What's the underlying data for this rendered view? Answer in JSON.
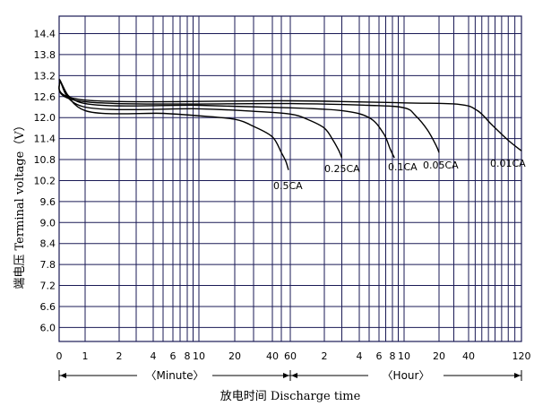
{
  "chart_data": {
    "type": "line",
    "ylabel": "端电压 Terminal voltage（V）",
    "xlabel": "放电时间 Discharge time",
    "ylim": [
      5.6,
      14.9
    ],
    "y_ticks": [
      "14.4",
      "13.8",
      "13.2",
      "12.6",
      "12.0",
      "11.4",
      "10.8",
      "10.2",
      "9.6",
      "9.0",
      "8.4",
      "7.8",
      "7.2",
      "6.6",
      "6.0"
    ],
    "x_ticks": [
      {
        "label": "0",
        "minutes": 0
      },
      {
        "label": "1",
        "minutes": 1
      },
      {
        "label": "2",
        "minutes": 2
      },
      {
        "label": "4",
        "minutes": 4
      },
      {
        "label": "6",
        "minutes": 6
      },
      {
        "label": "8",
        "minutes": 8
      },
      {
        "label": "10",
        "minutes": 10
      },
      {
        "label": "20",
        "minutes": 20
      },
      {
        "label": "40",
        "minutes": 40
      },
      {
        "label": "60",
        "minutes": 60
      },
      {
        "label": "2",
        "minutes": 120
      },
      {
        "label": "4",
        "minutes": 240
      },
      {
        "label": "6",
        "minutes": 360
      },
      {
        "label": "8",
        "minutes": 480
      },
      {
        "label": "10",
        "minutes": 600
      },
      {
        "label": "20",
        "minutes": 1200
      },
      {
        "label": "40",
        "minutes": 2400
      },
      {
        "label": "120",
        "minutes": 7200
      }
    ],
    "x_sections": [
      "〈Minute〉",
      "〈Hour〉"
    ],
    "grid": true,
    "series": [
      {
        "name": "0.5CA",
        "x": [
          0,
          1,
          5,
          10,
          20,
          30,
          40,
          50,
          55,
          58
        ],
        "y": [
          13.1,
          12.2,
          12.12,
          12.05,
          11.95,
          11.75,
          11.45,
          11.0,
          10.75,
          10.5
        ]
      },
      {
        "name": "0.25CA",
        "x": [
          0,
          1,
          10,
          30,
          60,
          90,
          120,
          150,
          170,
          180
        ],
        "y": [
          13.1,
          12.3,
          12.25,
          12.18,
          12.1,
          11.95,
          11.7,
          11.35,
          11.05,
          10.85
        ]
      },
      {
        "name": "0.1CA",
        "x": [
          0,
          1,
          10,
          60,
          180,
          300,
          400,
          460,
          500
        ],
        "y": [
          13.1,
          12.4,
          12.35,
          12.28,
          12.2,
          12.0,
          11.55,
          11.1,
          10.85
        ]
      },
      {
        "name": "0.05CA",
        "x": [
          0,
          1,
          60,
          300,
          600,
          800,
          1000,
          1150,
          1200
        ],
        "y": [
          13.1,
          12.45,
          12.4,
          12.35,
          12.28,
          12.05,
          11.65,
          11.2,
          11.0
        ]
      },
      {
        "name": "0.01CA",
        "x": [
          0,
          1,
          60,
          600,
          2000,
          3200,
          4500,
          6000,
          7200
        ],
        "y": [
          13.1,
          12.5,
          12.48,
          12.42,
          12.38,
          12.2,
          11.8,
          11.35,
          11.05
        ]
      }
    ],
    "curve_labels": [
      "0.5CA",
      "0.25CA",
      "0.1CA",
      "0.05CA",
      "0.01CA"
    ]
  }
}
